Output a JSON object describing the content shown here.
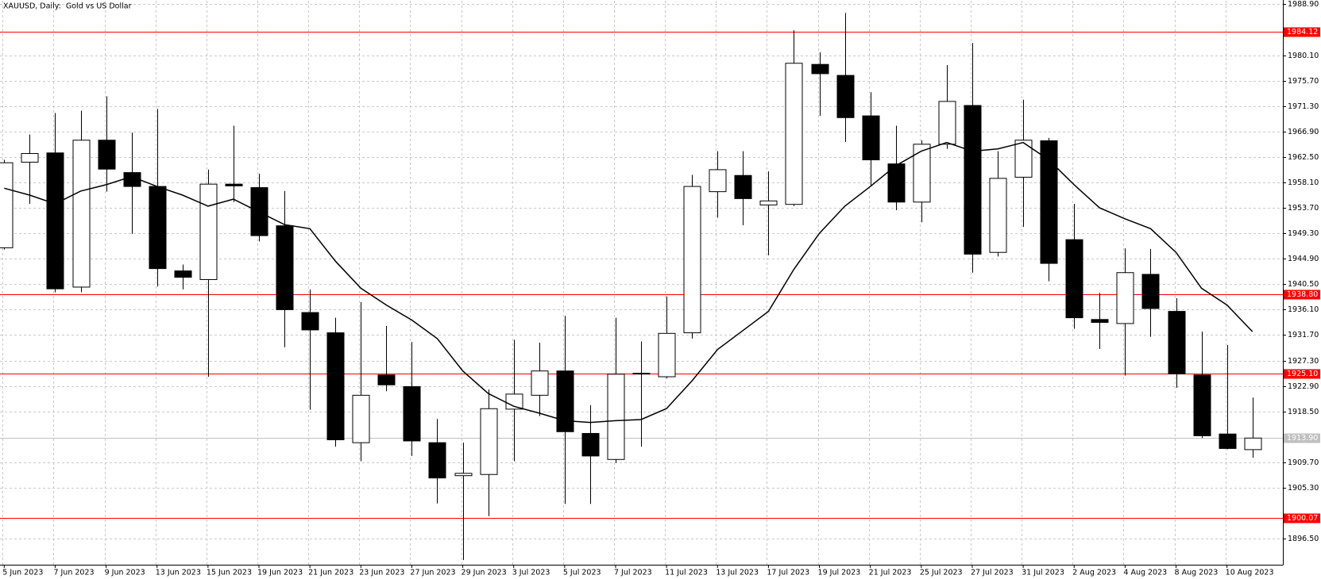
{
  "chart_data": {
    "type": "candlestick",
    "title": "XAUUSD, Daily:  Gold vs US Dollar",
    "categories": [
      "5 Jun 2023",
      null,
      "7 Jun 2023",
      null,
      "9 Jun 2023",
      null,
      "13 Jun 2023",
      null,
      "15 Jun 2023",
      null,
      "19 Jun 2023",
      null,
      "21 Jun 2023",
      null,
      "23 Jun 2023",
      null,
      "27 Jun 2023",
      null,
      "29 Jun 2023",
      null,
      "3 Jul 2023",
      null,
      "5 Jul 2023",
      null,
      "7 Jul 2023",
      null,
      "11 Jul 2023",
      null,
      "13 Jul 2023",
      null,
      "17 Jul 2023",
      null,
      "19 Jul 2023",
      null,
      "21 Jul 2023",
      null,
      "25 Jul 2023",
      null,
      "27 Jul 2023",
      null,
      "31 Jul 2023",
      null,
      "2 Aug 2023",
      null,
      "4 Aug 2023",
      null,
      "8 Aug 2023",
      null,
      "10 Aug 2023",
      null
    ],
    "open": [
      1946.8,
      1961.6,
      1963.2,
      1940.0,
      1965.4,
      1959.8,
      1957.4,
      1942.8,
      1941.3,
      1957.8,
      1957.2,
      1950.6,
      1935.6,
      1932.1,
      1913.1,
      1924.8,
      1922.8,
      1913.1,
      1907.4,
      1907.6,
      1918.9,
      1921.3,
      1925.5,
      1914.7,
      1910.2,
      1925.1,
      1924.5,
      1932.1,
      1956.5,
      1959.3,
      1954.2,
      1954.3,
      1978.5,
      1976.6,
      1969.6,
      1961.3,
      1954.7,
      1964.7,
      1971.4,
      1946.0,
      1959.0,
      1965.3,
      1948.2,
      1934.4,
      1933.7,
      1942.2,
      1935.8,
      1924.8,
      1914.6,
      1911.9
    ],
    "high": [
      1962.0,
      1966.4,
      1970.1,
      1970.5,
      1973.0,
      1966.7,
      1970.8,
      1943.9,
      1960.3,
      1967.9,
      1959.6,
      1956.6,
      1939.6,
      1934.7,
      1937.4,
      1933.3,
      1930.5,
      1917.2,
      1913.1,
      1922.3,
      1930.9,
      1930.4,
      1935.0,
      1919.6,
      1934.7,
      1930.6,
      1938.4,
      1959.4,
      1963.5,
      1963.5,
      1960.0,
      1984.4,
      1980.6,
      1987.4,
      1973.7,
      1967.9,
      1965.4,
      1978.4,
      1982.2,
      1963.5,
      1972.4,
      1965.8,
      1954.4,
      1939.0,
      1946.7,
      1946.6,
      1938.1,
      1932.3,
      1930.0,
      1920.9
    ],
    "low": [
      1946.5,
      1954.4,
      1939.1,
      1939.1,
      1956.5,
      1949.2,
      1940.1,
      1939.6,
      1924.5,
      1954.7,
      1947.9,
      1929.6,
      1918.8,
      1912.4,
      1909.9,
      1922.0,
      1910.8,
      1902.6,
      1892.8,
      1900.4,
      1909.9,
      1917.7,
      1902.5,
      1902.5,
      1909.6,
      1912.4,
      1924.2,
      1931.1,
      1952.0,
      1950.7,
      1945.5,
      1954.0,
      1969.6,
      1965.1,
      1957.5,
      1953.3,
      1951.2,
      1963.9,
      1942.5,
      1945.3,
      1950.4,
      1941.0,
      1932.8,
      1929.3,
      1924.7,
      1931.4,
      1922.6,
      1913.9,
      1911.96,
      1910.5
    ],
    "close": [
      1961.5,
      1963.1,
      1939.7,
      1965.4,
      1960.4,
      1957.4,
      1943.2,
      1941.7,
      1957.8,
      1957.5,
      1948.9,
      1936.1,
      1932.6,
      1913.6,
      1921.3,
      1923.1,
      1913.4,
      1907.0,
      1907.8,
      1918.98,
      1921.5,
      1925.5,
      1915.0,
      1910.8,
      1924.95,
      1925.0,
      1932.0,
      1957.4,
      1960.3,
      1955.3,
      1954.9,
      1978.7,
      1976.9,
      1969.3,
      1962.0,
      1954.7,
      1964.7,
      1972.1,
      1945.7,
      1958.8,
      1965.4,
      1944.1,
      1934.7,
      1933.9,
      1942.5,
      1936.3,
      1925.0,
      1914.3,
      1912.1,
      1913.9
    ],
    "up_color": "#ffffff",
    "down_color": "#000000",
    "lines": [
      {
        "color": "#000000",
        "values": [
          1957.1,
          1955.9,
          1954.4,
          1956.6,
          1957.7,
          1959.1,
          1957.4,
          1955.9,
          1954.0,
          1955.2,
          1953.0,
          1950.8,
          1950.1,
          1944.5,
          1939.8,
          1936.9,
          1934.3,
          1931.1,
          1925.5,
          1921.6,
          1919.4,
          1918.2,
          1916.9,
          1916.6,
          1916.9,
          1917.1,
          1919.0,
          1923.8,
          1929.2,
          1932.5,
          1935.8,
          1943.1,
          1949.3,
          1954.0,
          1957.4,
          1961.0,
          1963.5,
          1965.0,
          1963.5,
          1963.9,
          1965.0,
          1962.0,
          1957.7,
          1953.7,
          1951.8,
          1950.1,
          1946.0,
          1939.8,
          1936.9,
          1932.3
        ]
      }
    ],
    "levels": [
      {
        "value": 1984.12,
        "label": "1984.12",
        "color": "#ff0000"
      },
      {
        "value": 1938.8,
        "label": "1938.80",
        "color": "#ff0000"
      },
      {
        "value": 1925.1,
        "label": "1925.10",
        "color": "#ff0000"
      },
      {
        "value": 1913.9,
        "label": "1913.90",
        "color": "#c0c0c0"
      },
      {
        "value": 1900.07,
        "label": "1900.07",
        "color": "#ff0000"
      }
    ],
    "ylim": [
      1892.0,
      1989.5
    ],
    "yticks": [
      {
        "value": 1988.9,
        "label": "1988.90"
      },
      {
        "value": 1980.1,
        "label": "1980.10"
      },
      {
        "value": 1975.7,
        "label": "1975.70"
      },
      {
        "value": 1971.3,
        "label": "1971.30"
      },
      {
        "value": 1966.9,
        "label": "1966.90"
      },
      {
        "value": 1962.5,
        "label": "1962.50"
      },
      {
        "value": 1958.1,
        "label": "1958.10"
      },
      {
        "value": 1953.7,
        "label": "1953.70"
      },
      {
        "value": 1949.3,
        "label": "1949.30"
      },
      {
        "value": 1944.9,
        "label": "1944.90"
      },
      {
        "value": 1940.5,
        "label": "1940.50"
      },
      {
        "value": 1936.1,
        "label": "1936.10"
      },
      {
        "value": 1931.7,
        "label": "1931.70"
      },
      {
        "value": 1927.3,
        "label": "1927.30"
      },
      {
        "value": 1922.9,
        "label": "1922.90"
      },
      {
        "value": 1918.5,
        "label": "1918.50"
      },
      {
        "value": 1909.7,
        "label": "1909.70"
      },
      {
        "value": 1905.3,
        "label": "1905.30"
      },
      {
        "value": 1896.5,
        "label": "1896.50"
      }
    ],
    "grid": true
  }
}
